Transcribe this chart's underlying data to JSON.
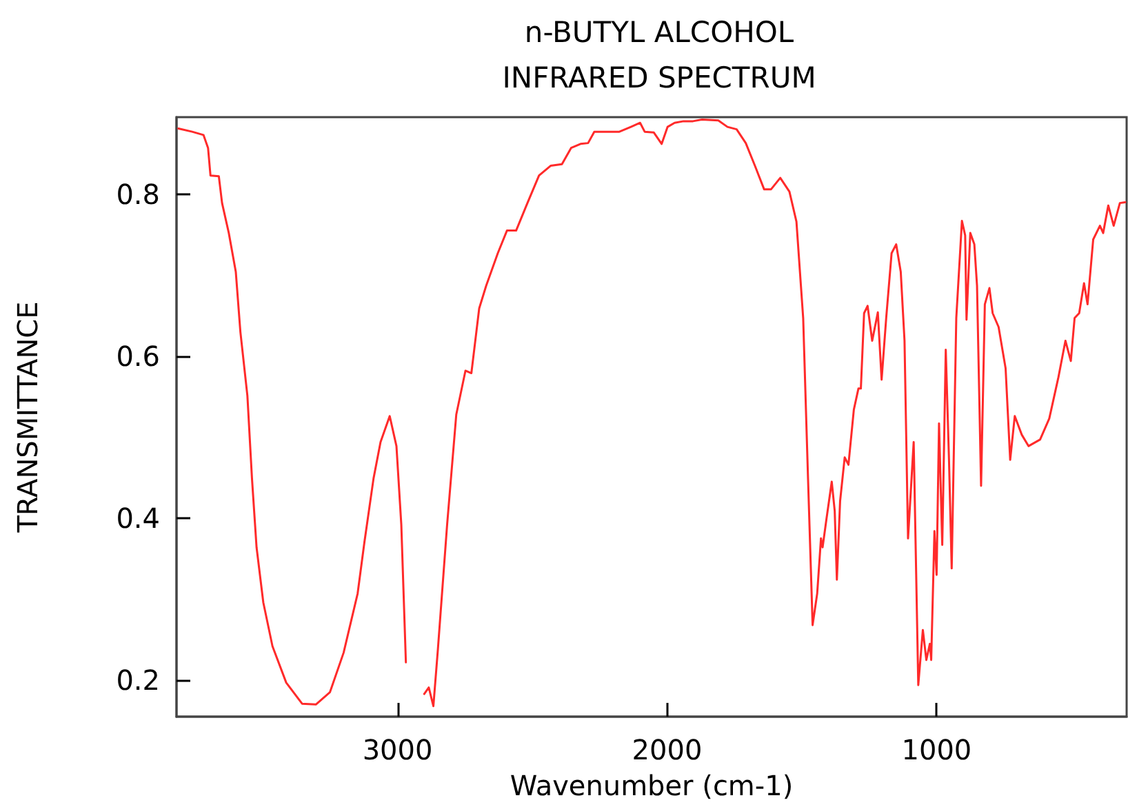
{
  "chart_data": {
    "type": "line",
    "title": "n-BUTYL ALCOHOL",
    "subtitle": "INFRARED SPECTRUM",
    "xlabel": "Wavenumber (cm-1)",
    "ylabel": "TRANSMITTANCE",
    "xlim": [
      3820,
      295
    ],
    "xticks": [
      3000,
      2000,
      1000
    ],
    "ylim": [
      0.155,
      0.895
    ],
    "yticks": [
      0.2,
      0.4,
      0.6,
      0.8
    ],
    "grid": false,
    "marker": "none",
    "line_style": "solid",
    "series": [
      {
        "color": "#ff2a2a",
        "x": [
          3813,
          3762,
          3720,
          3703,
          3694,
          3663,
          3651,
          3626,
          3600,
          3583,
          3557,
          3540,
          3523,
          3498,
          3464,
          3413,
          3354,
          3303,
          3251,
          3200,
          3148,
          3123,
          3089,
          3063,
          3029,
          3004,
          2986,
          2969,
          2944,
          2901,
          2884,
          2867,
          2850,
          2816,
          2782,
          2748,
          2726,
          2697,
          2671,
          2628,
          2594,
          2560,
          2518,
          2475,
          2432,
          2390,
          2356,
          2321,
          2293,
          2270,
          2177,
          2134,
          2100,
          2083,
          2049,
          2020,
          1998,
          1972,
          1939,
          1904,
          1870,
          1810,
          1776,
          1742,
          1708,
          1674,
          1640,
          1614,
          1580,
          1546,
          1520,
          1495,
          1477,
          1460,
          1443,
          1429,
          1423,
          1409,
          1389,
          1378,
          1370,
          1358,
          1341,
          1327,
          1307,
          1290,
          1281,
          1269,
          1256,
          1239,
          1218,
          1204,
          1187,
          1167,
          1150,
          1133,
          1119,
          1106,
          1085,
          1068,
          1051,
          1038,
          1025,
          1020,
          1008,
          1000,
          991,
          979,
          966,
          954,
          944,
          927,
          906,
          894,
          889,
          875,
          860,
          850,
          835,
          821,
          804,
          792,
          770,
          744,
          727,
          710,
          684,
          659,
          616,
          582,
          548,
          522,
          502,
          488,
          471,
          453,
          440,
          419,
          394,
          382,
          363,
          343,
          320,
          300
        ],
        "values": [
          0.881,
          0.877,
          0.873,
          0.857,
          0.823,
          0.822,
          0.789,
          0.752,
          0.704,
          0.63,
          0.551,
          0.449,
          0.364,
          0.296,
          0.242,
          0.197,
          0.171,
          0.17,
          0.185,
          0.234,
          0.307,
          0.37,
          0.449,
          0.494,
          0.526,
          0.489,
          0.392,
          0.222,
          null,
          0.183,
          0.191,
          0.168,
          0.239,
          0.392,
          0.528,
          0.582,
          0.579,
          0.659,
          0.687,
          0.727,
          0.755,
          0.755,
          0.789,
          0.823,
          0.835,
          0.837,
          0.857,
          0.862,
          0.863,
          0.877,
          0.877,
          0.883,
          0.888,
          0.877,
          0.876,
          0.862,
          0.883,
          0.888,
          0.89,
          0.89,
          0.892,
          0.891,
          0.883,
          0.88,
          0.863,
          0.835,
          0.806,
          0.806,
          0.82,
          0.803,
          0.766,
          0.647,
          0.449,
          0.268,
          0.307,
          0.375,
          0.364,
          0.398,
          0.445,
          0.409,
          0.324,
          0.421,
          0.475,
          0.466,
          0.534,
          0.56,
          0.56,
          0.653,
          0.662,
          0.619,
          0.654,
          0.571,
          0.647,
          0.727,
          0.738,
          0.704,
          0.619,
          0.375,
          0.494,
          0.194,
          0.262,
          0.225,
          0.245,
          0.225,
          0.384,
          0.33,
          0.517,
          0.367,
          0.608,
          0.472,
          0.338,
          0.647,
          0.767,
          0.749,
          0.645,
          0.752,
          0.738,
          0.687,
          0.44,
          0.664,
          0.684,
          0.653,
          0.636,
          0.585,
          0.472,
          0.526,
          0.503,
          0.489,
          0.497,
          0.523,
          0.574,
          0.619,
          0.594,
          0.647,
          0.653,
          0.69,
          0.664,
          0.744,
          0.761,
          0.752,
          0.786,
          0.761,
          0.789,
          0.79
        ]
      }
    ]
  }
}
